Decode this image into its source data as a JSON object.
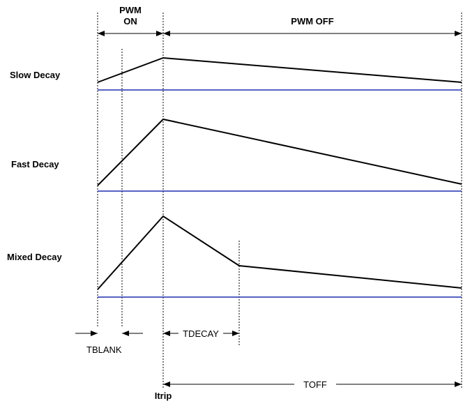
{
  "labels": {
    "pwm_on_line1": "PWM",
    "pwm_on_line2": "ON",
    "pwm_off": "PWM OFF",
    "slow_decay": "Slow Decay",
    "fast_decay": "Fast Decay",
    "mixed_decay": "Mixed Decay",
    "tblank": "TBLANK",
    "tdecay": "TDECAY",
    "toff": "TOFF",
    "itrip": "Itrip"
  },
  "colors": {
    "baseline": "#1f2fb0",
    "waveform": "#000000"
  }
}
